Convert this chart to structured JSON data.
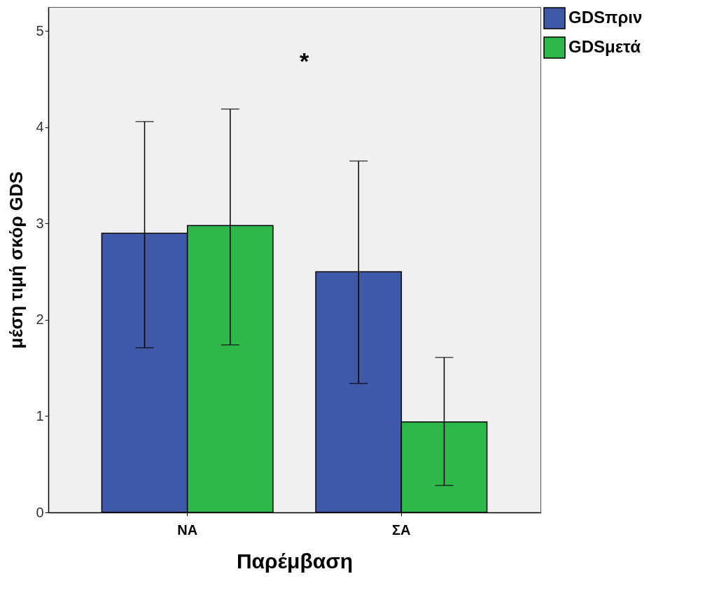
{
  "chart_data": {
    "type": "bar",
    "xlabel": "Παρέμβαση",
    "ylabel": "μέση τιμή σκόρ GDS",
    "categories": [
      "ΝΑ",
      "ΣΑ"
    ],
    "series": [
      {
        "name": "GDSπριν",
        "color": "#3f58a8",
        "values": [
          2.9,
          2.5
        ],
        "errors": [
          [
            1.71,
            4.06
          ],
          [
            1.34,
            3.65
          ]
        ]
      },
      {
        "name": "GDSμετά",
        "color": "#2fb84a",
        "values": [
          2.98,
          0.94
        ],
        "errors": [
          [
            1.74,
            4.19
          ],
          [
            0.28,
            1.61
          ]
        ]
      }
    ],
    "ylim": [
      0,
      5.25
    ],
    "yticks": [
      0,
      1,
      2,
      3,
      4,
      5
    ],
    "grid": false,
    "legend": "top right",
    "annotations": [
      "*"
    ]
  }
}
